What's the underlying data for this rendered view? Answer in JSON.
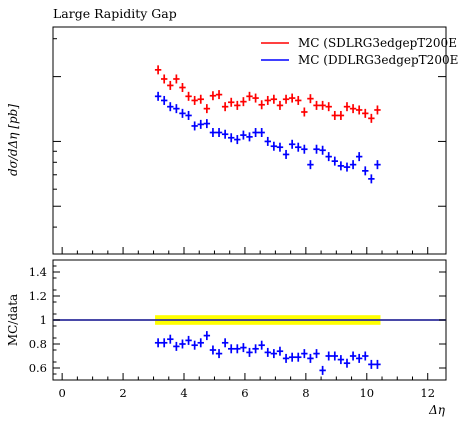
{
  "chart_data": [
    {
      "type": "scatter",
      "panel": "main",
      "title": "Large Rapidity Gap",
      "ylabel": "dσ/dΔη [pb]",
      "xlim": [
        -0.3,
        12.6
      ],
      "y_scale": "log",
      "y_tick_labels": [],
      "grid": false,
      "legend_position": "top-right",
      "series": [
        {
          "name": "MC (SDLRG3edgepT200E",
          "color": "#ff0000",
          "x": [
            3.15,
            3.35,
            3.55,
            3.75,
            3.95,
            4.15,
            4.35,
            4.55,
            4.75,
            4.95,
            5.15,
            5.35,
            5.55,
            5.75,
            5.95,
            6.15,
            6.35,
            6.55,
            6.75,
            6.95,
            7.15,
            7.35,
            7.55,
            7.75,
            7.95,
            8.15,
            8.35,
            8.55,
            8.75,
            8.95,
            9.15,
            9.35,
            9.55,
            9.75,
            9.95,
            10.15,
            10.35
          ],
          "y": [
            2.15,
            1.95,
            1.82,
            1.95,
            1.78,
            1.62,
            1.55,
            1.57,
            1.42,
            1.63,
            1.65,
            1.45,
            1.52,
            1.47,
            1.53,
            1.62,
            1.59,
            1.48,
            1.55,
            1.57,
            1.47,
            1.57,
            1.59,
            1.55,
            1.37,
            1.58,
            1.47,
            1.47,
            1.45,
            1.32,
            1.32,
            1.45,
            1.42,
            1.4,
            1.35,
            1.28,
            1.4
          ]
        },
        {
          "name": "MC (DDLRG3edgepT200E",
          "color": "#0000ff",
          "x": [
            3.15,
            3.35,
            3.55,
            3.75,
            3.95,
            4.15,
            4.35,
            4.55,
            4.75,
            4.95,
            5.15,
            5.35,
            5.55,
            5.75,
            5.95,
            6.15,
            6.35,
            6.55,
            6.75,
            6.95,
            7.15,
            7.35,
            7.55,
            7.75,
            7.95,
            8.15,
            8.35,
            8.55,
            8.75,
            8.95,
            9.15,
            9.35,
            9.55,
            9.75,
            9.95,
            10.15,
            10.35
          ],
          "y": [
            1.62,
            1.55,
            1.45,
            1.42,
            1.35,
            1.32,
            1.18,
            1.2,
            1.21,
            1.1,
            1.1,
            1.08,
            1.04,
            1.02,
            1.07,
            1.05,
            1.1,
            1.1,
            1.0,
            0.95,
            0.94,
            0.87,
            0.97,
            0.94,
            0.92,
            0.78,
            0.92,
            0.91,
            0.85,
            0.81,
            0.77,
            0.76,
            0.78,
            0.85,
            0.73,
            0.67,
            0.78
          ]
        }
      ]
    },
    {
      "type": "scatter",
      "panel": "ratio",
      "ylabel": "MC/data",
      "xlabel": "Δη",
      "xlim": [
        -0.3,
        12.6
      ],
      "ylim": [
        0.5,
        1.5
      ],
      "x_ticks": [
        "0",
        "2",
        "4",
        "6",
        "8",
        "10",
        "12"
      ],
      "y_ticks": [
        "0.6",
        "0.8",
        "1",
        "1.2",
        "1.4"
      ],
      "grid": false,
      "reference_line": 1.0,
      "band": {
        "x": [
          3.05,
          10.45
        ],
        "ylim": [
          0.96,
          1.04
        ],
        "color": "#ffff00"
      },
      "series": [
        {
          "color": "#0000ff",
          "x": [
            3.15,
            3.35,
            3.55,
            3.75,
            3.95,
            4.15,
            4.35,
            4.55,
            4.75,
            4.95,
            5.15,
            5.35,
            5.55,
            5.75,
            5.95,
            6.15,
            6.35,
            6.55,
            6.75,
            6.95,
            7.15,
            7.35,
            7.55,
            7.75,
            7.95,
            8.15,
            8.35,
            8.55,
            8.75,
            8.95,
            9.15,
            9.35,
            9.55,
            9.75,
            9.95,
            10.15,
            10.35
          ],
          "y": [
            0.81,
            0.81,
            0.84,
            0.78,
            0.8,
            0.83,
            0.79,
            0.81,
            0.87,
            0.75,
            0.72,
            0.81,
            0.76,
            0.76,
            0.77,
            0.73,
            0.76,
            0.79,
            0.73,
            0.72,
            0.74,
            0.68,
            0.69,
            0.69,
            0.72,
            0.68,
            0.72,
            0.58,
            0.7,
            0.7,
            0.67,
            0.64,
            0.7,
            0.68,
            0.7,
            0.63,
            0.63
          ]
        }
      ]
    }
  ]
}
